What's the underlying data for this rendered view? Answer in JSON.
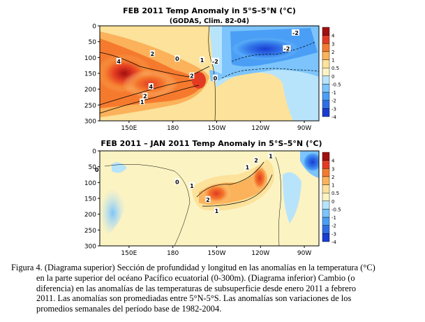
{
  "panels": [
    {
      "title": "FEB 2011 Temp Anomaly in 5°S–5°N (°C)",
      "subtitle": "(GODAS, Clim. 82-04)",
      "y_ticks": [
        "0",
        "50",
        "100",
        "150",
        "200",
        "250",
        "300"
      ],
      "x_ticks": [
        "150E",
        "180",
        "150W",
        "120W",
        "90W"
      ],
      "contour_labels": [
        {
          "text": "4",
          "lon": 143,
          "depth": 112
        },
        {
          "text": "2",
          "lon": 166,
          "depth": 88
        },
        {
          "text": "4",
          "lon": 165,
          "depth": 192
        },
        {
          "text": "2",
          "lon": 161,
          "depth": 222
        },
        {
          "text": "1",
          "lon": 159,
          "depth": 240
        },
        {
          "text": "2",
          "lon": 193,
          "depth": 158
        },
        {
          "text": "1",
          "lon": 200,
          "depth": 108
        },
        {
          "text": "0",
          "lon": 183,
          "depth": 104
        },
        {
          "text": "0",
          "lon": 209,
          "depth": 165
        },
        {
          "text": "-2",
          "lon": 209,
          "depth": 112
        },
        {
          "text": "-2",
          "lon": 258,
          "depth": 72
        },
        {
          "text": "-2",
          "lon": 264,
          "depth": 22
        }
      ]
    },
    {
      "title": "FEB 2011 – JAN 2011 Temp Anomaly in 5°S–5°N (°C)",
      "subtitle": "",
      "y_ticks": [
        "0",
        "50",
        "100",
        "150",
        "200",
        "250",
        "300"
      ],
      "x_ticks": [
        "150E",
        "180",
        "150W",
        "120W",
        "90W"
      ],
      "contour_labels": [
        {
          "text": "0",
          "lon": 128,
          "depth": 60
        },
        {
          "text": "1",
          "lon": 193,
          "depth": 110
        },
        {
          "text": "2",
          "lon": 204,
          "depth": 154
        },
        {
          "text": "1",
          "lon": 210,
          "depth": 190
        },
        {
          "text": "0",
          "lon": 183,
          "depth": 98
        },
        {
          "text": "1",
          "lon": 231,
          "depth": 52
        },
        {
          "text": "2",
          "lon": 237,
          "depth": 30
        },
        {
          "text": "1",
          "lon": 247,
          "depth": 16
        }
      ]
    }
  ],
  "colorbar_labels": [
    "4",
    "3",
    "2",
    "1",
    "0.5",
    "0",
    "-0.5",
    "-1",
    "-2",
    "-3",
    "-4"
  ],
  "caption_lines": [
    "Figura 4. (Diagrama superior) Sección de profundidad y longitud en las anomalías en la temperatura (°C)",
    "en la parte superior del océano Pacífico ecuatorial (0-300m).  (Diagrama inferior) Cambio (o",
    "diferencia) en las anomalías de las temperaturas de subsuperficie desde enero 2011 a febrero",
    "2011.  Las anomalías son promediadas entre 5°N-5°S. Las anomalías son variaciones de los",
    "promedios semanales del período base de 1982-2004."
  ],
  "chart_data": [
    {
      "type": "heatmap",
      "title": "FEB 2011 Temp Anomaly in 5°S–5°N (°C)",
      "subtitle": "(GODAS, Clim. 82-04)",
      "x_axis": {
        "ticks": [
          "150E",
          "180",
          "150W",
          "120W",
          "90W"
        ],
        "tick_lon_deg_east": [
          150,
          180,
          210,
          240,
          270
        ],
        "range_lon_deg_east": [
          130,
          280
        ]
      },
      "y_axis": {
        "ticks": [
          0,
          50,
          100,
          150,
          200,
          250,
          300
        ],
        "range_m": [
          0,
          300
        ],
        "reversed": true
      },
      "z_levels": [
        -4,
        -3,
        -2,
        -1,
        -0.5,
        0,
        0.5,
        1,
        2,
        3,
        4
      ],
      "features": [
        {
          "name": "warm core",
          "lon": 143,
          "depth": 115,
          "value": 4.6
        },
        {
          "name": "warm core",
          "lon": 168,
          "depth": 175,
          "value": 4.4
        },
        {
          "name": "warm tongue",
          "lon": 196,
          "depth": 148,
          "value": 2.6
        },
        {
          "name": "cold core",
          "lon": 258,
          "depth": 55,
          "value": -2.8
        },
        {
          "name": "cold pocket",
          "lon": 208,
          "depth": 108,
          "value": -1.4
        }
      ],
      "legend": "right colorbar"
    },
    {
      "type": "heatmap",
      "title": "FEB 2011 – JAN 2011 Temp Anomaly in 5°S–5°N (°C)",
      "x_axis": {
        "ticks": [
          "150E",
          "180",
          "150W",
          "120W",
          "90W"
        ],
        "tick_lon_deg_east": [
          150,
          180,
          210,
          240,
          270
        ],
        "range_lon_deg_east": [
          130,
          280
        ]
      },
      "y_axis": {
        "ticks": [
          0,
          50,
          100,
          150,
          200,
          250,
          300
        ],
        "range_m": [
          0,
          300
        ],
        "reversed": true
      },
      "z_levels": [
        -4,
        -3,
        -2,
        -1,
        -0.5,
        0,
        0.5,
        1,
        2,
        3,
        4
      ],
      "features": [
        {
          "name": "warm core",
          "lon": 205,
          "depth": 135,
          "value": 2.6
        },
        {
          "name": "warm core",
          "lon": 235,
          "depth": 75,
          "value": 2.5
        },
        {
          "name": "cool patch",
          "lon": 140,
          "depth": 150,
          "value": -0.8
        },
        {
          "name": "cool patch",
          "lon": 275,
          "depth": 25,
          "value": -3.5
        }
      ],
      "legend": "right colorbar"
    }
  ],
  "colors": {
    "levels": [
      "#1a3dd1",
      "#2f6fe6",
      "#4a9ef5",
      "#7cc4fb",
      "#b8e4fb",
      "#fbf3c2",
      "#fce29a",
      "#fbb25a",
      "#f57a2e",
      "#e23b22",
      "#a30f0f"
    ]
  }
}
